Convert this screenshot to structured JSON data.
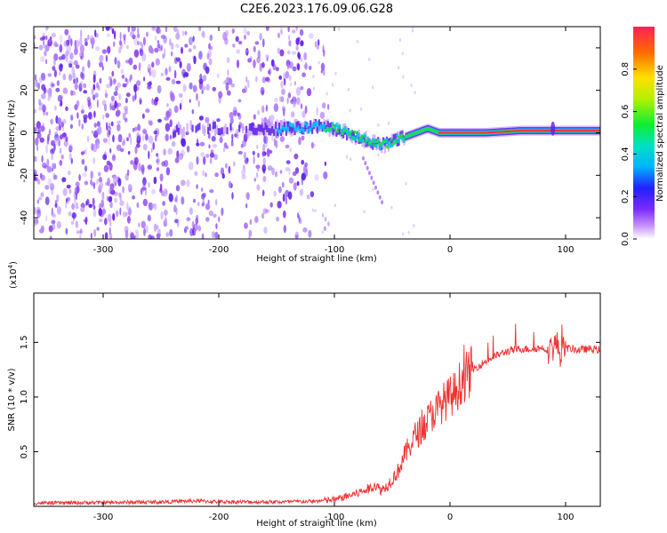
{
  "title": "C2E6.2023.176.09.06.G28",
  "chart_data": [
    {
      "type": "heatmap",
      "xlabel": "Height of straight line (km)",
      "ylabel": "Frequency (Hz)",
      "xlim": [
        -360,
        130
      ],
      "ylim": [
        -50,
        50
      ],
      "xticks": [
        -300,
        -200,
        -100,
        0,
        100
      ],
      "xtick_labels": [
        "-300",
        "-200",
        "-100",
        "0",
        "100"
      ],
      "yticks": [
        -40,
        -20,
        0,
        20,
        40
      ],
      "ytick_labels": [
        "-40",
        "-20",
        "0",
        "20",
        "40"
      ],
      "colorbar": {
        "label": "Normalized spectral amplitude",
        "range": [
          0,
          1
        ],
        "ticks": [
          0.0,
          0.2,
          0.4,
          0.6,
          0.8
        ],
        "tick_labels": [
          "0.0",
          "0.2",
          "0.4",
          "0.6",
          "0.8"
        ]
      },
      "features": {
        "noise_region_x": [
          -360,
          -120
        ],
        "signal_track": {
          "x": [
            -240,
            -210,
            -180,
            -150,
            -120,
            -100,
            -80,
            -60,
            -50,
            -40,
            -30,
            -20,
            -10,
            0,
            30,
            60,
            90,
            120,
            130
          ],
          "y": [
            1,
            3,
            1,
            2,
            3,
            2,
            -2,
            -6,
            -4,
            -2,
            0,
            2,
            0,
            0,
            0,
            1,
            1,
            1,
            1
          ]
        }
      }
    },
    {
      "type": "line",
      "xlabel": "Height of straight line (km)",
      "ylabel": "SNR (10 * v/v)",
      "y_multiplier": "(x10^4)",
      "y_multiplier_base": "(x10",
      "y_multiplier_exp": "4",
      "y_multiplier_close": ")",
      "xlim": [
        -360,
        130
      ],
      "ylim": [
        0,
        19500
      ],
      "xticks": [
        -300,
        -200,
        -100,
        0,
        100
      ],
      "xtick_labels": [
        "-300",
        "-200",
        "-100",
        "0",
        "100"
      ],
      "yticks": [
        5000,
        10000,
        15000
      ],
      "ytick_labels": [
        "0.5",
        "1.0",
        "1.5"
      ],
      "series": [
        {
          "color": "#ee3333",
          "x": [
            -360,
            -300,
            -250,
            -220,
            -200,
            -150,
            -120,
            -100,
            -90,
            -80,
            -70,
            -65,
            -60,
            -55,
            -50,
            -45,
            -40,
            -35,
            -30,
            -25,
            -20,
            -15,
            -10,
            -5,
            0,
            5,
            10,
            20,
            30,
            40,
            50,
            60,
            70,
            80,
            85,
            90,
            92,
            95,
            100,
            110,
            120,
            130
          ],
          "y": [
            300,
            350,
            400,
            500,
            420,
            400,
            450,
            600,
            900,
            1200,
            1600,
            2000,
            1500,
            1800,
            2500,
            3200,
            4500,
            5500,
            6500,
            7000,
            7800,
            8500,
            9000,
            9600,
            10000,
            10500,
            11500,
            12500,
            13200,
            13800,
            14200,
            14400,
            14400,
            14500,
            14300,
            14600,
            15000,
            14000,
            14500,
            14300,
            14400,
            14300
          ]
        }
      ]
    }
  ]
}
